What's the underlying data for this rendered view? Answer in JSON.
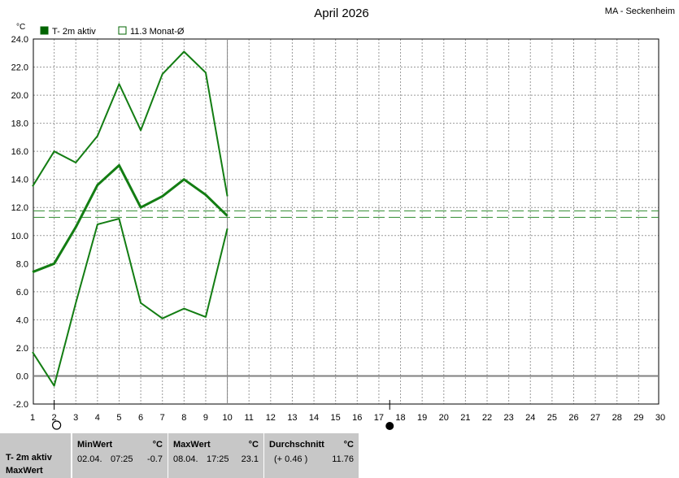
{
  "title": "April 2026",
  "station": "MA - Seckenheim",
  "unit": "°C",
  "legend": [
    {
      "label": "T- 2m aktiv",
      "color": "#006400",
      "filled": true
    },
    {
      "label": "11.3 Monat-Ø",
      "color": "#006400",
      "filled": false
    }
  ],
  "colors": {
    "line": "#137d13",
    "avg": "#2e8b2e",
    "grid": "#9a9a9a",
    "zero": "#808080"
  },
  "chart_data": {
    "type": "line",
    "title": "April 2026",
    "ylabel": "°C",
    "xlim": [
      1,
      30
    ],
    "ylim": [
      -2.0,
      24.0
    ],
    "y_ticks": [
      "-2.0",
      "0.0",
      "2.0",
      "4.0",
      "6.0",
      "8.0",
      "10.0",
      "12.0",
      "14.0",
      "16.0",
      "18.0",
      "20.0",
      "22.0",
      "24.0"
    ],
    "x_ticks": [
      "1",
      "2",
      "3",
      "4",
      "5",
      "6",
      "7",
      "8",
      "9",
      "10",
      "11",
      "12",
      "13",
      "14",
      "15",
      "16",
      "17",
      "18",
      "19",
      "20",
      "21",
      "22",
      "23",
      "24",
      "25",
      "26",
      "27",
      "28",
      "29",
      "30"
    ],
    "x": [
      1,
      2,
      3,
      4,
      5,
      6,
      7,
      8,
      9,
      10
    ],
    "series": [
      {
        "values": [
          13.5,
          16.0,
          15.2,
          17.1,
          20.8,
          17.5,
          21.5,
          23.1,
          21.6,
          12.8
        ]
      },
      {
        "values": [
          7.4,
          8.0,
          10.6,
          13.6,
          15.0,
          12.0,
          12.8,
          14.0,
          12.9,
          11.4
        ]
      },
      {
        "values": [
          1.7,
          -0.7,
          5.2,
          10.8,
          11.2,
          5.2,
          4.1,
          4.8,
          4.2,
          10.5
        ]
      }
    ],
    "monthly_average": 11.3,
    "reference_line": 11.76,
    "today_marker_x": 10,
    "moon_phase": [
      {
        "x": 2,
        "phase": "full"
      },
      {
        "x": 17.5,
        "phase": "new"
      }
    ],
    "grid": true
  },
  "table": {
    "row_label": "T- 2m aktiv",
    "row_label2": "MaxWert",
    "min": {
      "header": "MinWert",
      "unit": "°C",
      "date": "02.04.",
      "time": "07:25",
      "value": "-0.7"
    },
    "max": {
      "header": "MaxWert",
      "unit": "°C",
      "date": "08.04.",
      "time": "17:25",
      "value": "23.1"
    },
    "avg": {
      "header": "Durchschnitt",
      "unit": "°C",
      "delta": "(+ 0.46 )",
      "value": "11.76"
    }
  }
}
